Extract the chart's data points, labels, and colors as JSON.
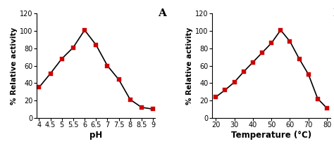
{
  "panel_A": {
    "x": [
      4,
      4.5,
      5,
      5.5,
      6,
      6.5,
      7,
      7.5,
      8,
      8.5,
      9
    ],
    "y": [
      35,
      51,
      68,
      81,
      101,
      84,
      60,
      44,
      21,
      12,
      10
    ],
    "xlabel": "pH",
    "ylabel": "% Relative activity",
    "label": "A",
    "xlim": [
      3.9,
      9.1
    ],
    "ylim": [
      0,
      120
    ],
    "xticks": [
      4,
      4.5,
      5,
      5.5,
      6,
      6.5,
      7,
      7.5,
      8,
      8.5,
      9
    ],
    "xticklabels": [
      "4",
      "4.5",
      "5",
      "5.5",
      "6",
      "6.5",
      "7",
      "7.5",
      "8",
      "8.5",
      "9"
    ],
    "yticks": [
      0,
      20,
      40,
      60,
      80,
      100,
      120
    ]
  },
  "panel_B": {
    "x": [
      20,
      25,
      30,
      35,
      40,
      45,
      50,
      55,
      60,
      65,
      70,
      75,
      80
    ],
    "y": [
      24,
      32,
      41,
      53,
      64,
      75,
      86,
      101,
      88,
      68,
      50,
      22,
      11
    ],
    "xlabel": "Temperature (°C)",
    "ylabel": "% Relative activity",
    "label": "B",
    "xlim": [
      18,
      82
    ],
    "ylim": [
      0,
      120
    ],
    "xticks": [
      20,
      30,
      40,
      50,
      60,
      70,
      80
    ],
    "xticklabels": [
      "20",
      "30",
      "40",
      "50",
      "60",
      "70",
      "80"
    ],
    "yticks": [
      0,
      20,
      40,
      60,
      80,
      100,
      120
    ]
  },
  "line_color": "#000000",
  "marker_color": "#cc0000",
  "marker": "s",
  "markersize": 4.5,
  "linewidth": 1.2,
  "xlabel_fontsize": 8.5,
  "ylabel_fontsize": 7.5,
  "tick_fontsize": 7,
  "panel_label_fontsize": 11
}
